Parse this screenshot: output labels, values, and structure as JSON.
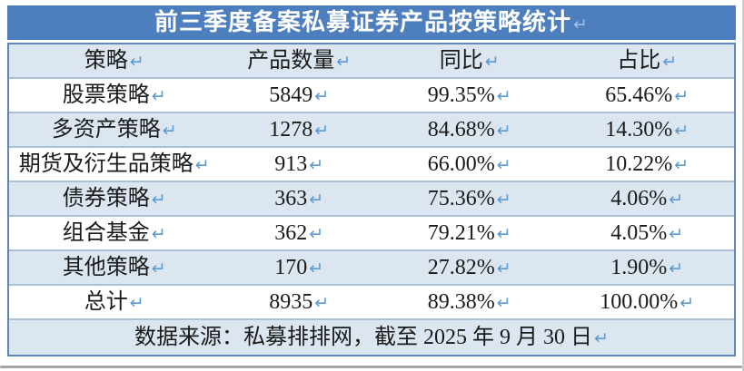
{
  "table": {
    "title": "前三季度备案私募证券产品按策略统计",
    "return_mark": "↵",
    "columns": [
      "策略",
      "产品数量",
      "同比",
      "占比"
    ],
    "rows": [
      [
        "股票策略",
        "5849",
        "99.35%",
        "65.46%"
      ],
      [
        "多资产策略",
        "1278",
        "84.68%",
        "14.30%"
      ],
      [
        "期货及衍生品策略",
        "913",
        "66.00%",
        "10.22%"
      ],
      [
        "债券策略",
        "363",
        "75.36%",
        "4.06%"
      ],
      [
        "组合基金",
        "362",
        "79.21%",
        "4.05%"
      ],
      [
        "其他策略",
        "170",
        "27.82%",
        "1.90%"
      ],
      [
        "总计",
        "8935",
        "89.38%",
        "100.00%"
      ]
    ],
    "footer": "数据来源：私募排排网，截至 2025 年 9 月 30 日",
    "colors": {
      "title_bar": "#4d7ebd",
      "alt_row": "#dce6f1",
      "return_mark_body": "#5b9bd5",
      "return_mark_title": "#9cc2e5",
      "row_border": "#aabfd8",
      "outer_border": "#5c85b8"
    }
  },
  "chart_data": {
    "type": "table",
    "title": "前三季度备案私募证券产品按策略统计",
    "columns": [
      "策略",
      "产品数量",
      "同比",
      "占比"
    ],
    "rows": [
      {
        "策略": "股票策略",
        "产品数量": 5849,
        "同比": "99.35%",
        "占比": "65.46%"
      },
      {
        "策略": "多资产策略",
        "产品数量": 1278,
        "同比": "84.68%",
        "占比": "14.30%"
      },
      {
        "策略": "期货及衍生品策略",
        "产品数量": 913,
        "同比": "66.00%",
        "占比": "10.22%"
      },
      {
        "策略": "债券策略",
        "产品数量": 363,
        "同比": "75.36%",
        "占比": "4.06%"
      },
      {
        "策略": "组合基金",
        "产品数量": 362,
        "同比": "79.21%",
        "占比": "4.05%"
      },
      {
        "策略": "其他策略",
        "产品数量": 170,
        "同比": "27.82%",
        "占比": "1.90%"
      },
      {
        "策略": "总计",
        "产品数量": 8935,
        "同比": "89.38%",
        "占比": "100.00%"
      }
    ],
    "source_note": "数据来源：私募排排网，截至 2025 年 9 月 30 日"
  }
}
